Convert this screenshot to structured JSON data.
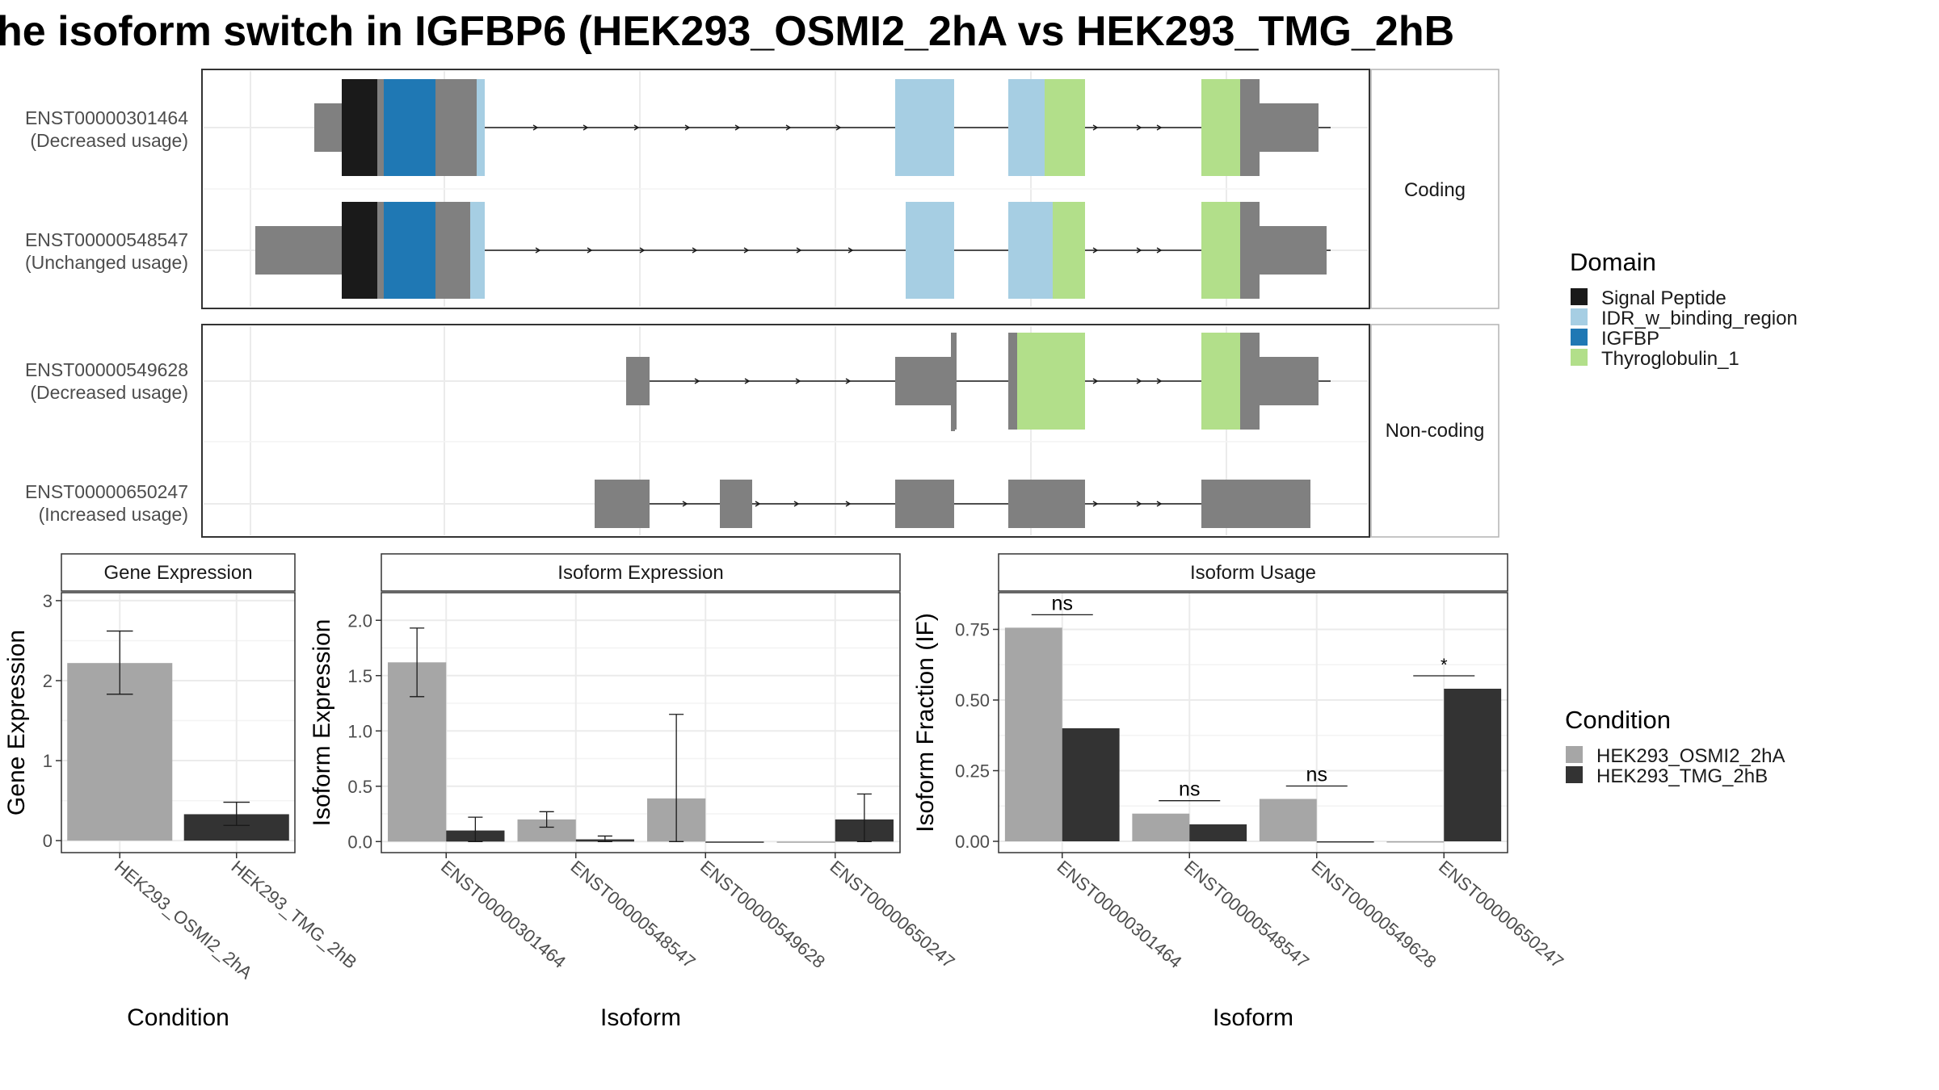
{
  "title": "he isoform switch in IGFBP6 (HEK293_OSMI2_2hA vs HEK293_TMG_2hB",
  "structure": {
    "facets": [
      "Coding",
      "Non-coding"
    ],
    "transcripts": [
      {
        "id": "ENST00000301464",
        "usage": "(Decreased usage)"
      },
      {
        "id": "ENST00000548547",
        "usage": "(Unchanged usage)"
      },
      {
        "id": "ENST00000549628",
        "usage": "(Decreased usage)"
      },
      {
        "id": "ENST00000650247",
        "usage": "(Increased usage)"
      }
    ]
  },
  "legend_domain": {
    "title": "Domain",
    "items": [
      {
        "label": "Signal Peptide",
        "color": "#1a1a1a"
      },
      {
        "label": "IDR_w_binding_region",
        "color": "#a6cee3"
      },
      {
        "label": "IGFBP",
        "color": "#1f78b4"
      },
      {
        "label": "Thyroglobulin_1",
        "color": "#b2df8a"
      }
    ]
  },
  "legend_condition": {
    "title": "Condition",
    "items": [
      {
        "label": "HEK293_OSMI2_2hA",
        "color": "#a6a6a6"
      },
      {
        "label": "HEK293_TMG_2hB",
        "color": "#333333"
      }
    ]
  },
  "colors": {
    "exon": "#808080",
    "cond_a": "#a6a6a6",
    "cond_b": "#333333",
    "grid": "#ebebeb",
    "border": "#333333"
  },
  "chart_data": [
    {
      "type": "bar",
      "title": "Gene Expression",
      "xlabel": "Condition",
      "ylabel": "Gene Expression",
      "categories": [
        "HEK293_OSMI2_2hA",
        "HEK293_TMG_2hB"
      ],
      "values": [
        2.22,
        0.33
      ],
      "error_low": [
        1.83,
        0.19
      ],
      "error_high": [
        2.62,
        0.48
      ],
      "ylim": [
        -0.15,
        3.1
      ],
      "yticks": [
        0,
        1,
        2,
        3
      ]
    },
    {
      "type": "bar",
      "title": "Isoform Expression",
      "xlabel": "Isoform",
      "ylabel": "Isoform Expression",
      "categories": [
        "ENST00000301464",
        "ENST00000548547",
        "ENST00000549628",
        "ENST00000650247"
      ],
      "series": [
        {
          "values": [
            1.62,
            0.2,
            0.39,
            0.0
          ],
          "error_low": [
            1.31,
            0.13,
            0.0,
            0.0
          ],
          "error_high": [
            1.93,
            0.27,
            1.15,
            0.0
          ]
        },
        {
          "values": [
            0.1,
            0.02,
            0.0,
            0.2
          ],
          "error_low": [
            0.0,
            0.0,
            0.0,
            0.0
          ],
          "error_high": [
            0.22,
            0.05,
            0.0,
            0.43
          ]
        }
      ],
      "ylim": [
        -0.1,
        2.25
      ],
      "yticks": [
        "0.0",
        "0.5",
        "1.0",
        "1.5",
        "2.0"
      ]
    },
    {
      "type": "bar",
      "title": "Isoform Usage",
      "xlabel": "Isoform",
      "ylabel": "Isoform Fraction (IF)",
      "categories": [
        "ENST00000301464",
        "ENST00000548547",
        "ENST00000549628",
        "ENST00000650247"
      ],
      "series": [
        {
          "values": [
            0.756,
            0.098,
            0.15,
            0.0
          ]
        },
        {
          "values": [
            0.4,
            0.06,
            0.0,
            0.54
          ]
        }
      ],
      "significance": [
        "ns",
        "ns",
        "ns",
        "*"
      ],
      "ylim": [
        -0.04,
        0.88
      ],
      "yticks": [
        "0.00",
        "0.25",
        "0.50",
        "0.75"
      ]
    }
  ]
}
